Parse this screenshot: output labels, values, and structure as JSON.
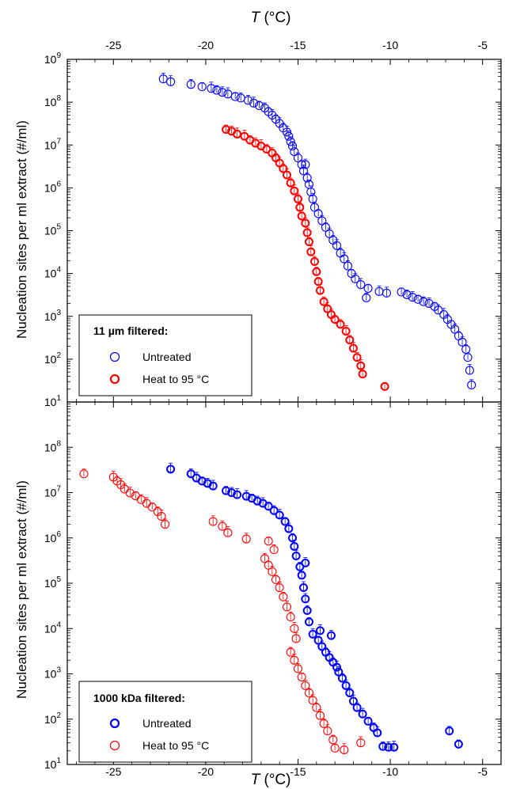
{
  "chart_data": {
    "type": "scatter",
    "top_xaxis": {
      "label_var": "T",
      "label_unit": " (°C)",
      "ticks": [
        -25,
        -20,
        -15,
        -10,
        -5
      ]
    },
    "bottom_xaxis": {
      "label_var": "T",
      "label_unit": " (°C)",
      "ticks": [
        -25,
        -20,
        -15,
        -10,
        -5
      ]
    },
    "xlim": [
      -27.5,
      -4
    ],
    "y_scale": "log",
    "panels": [
      {
        "ylabel": "Nucleation sites per ml extract (#/ml)",
        "ylim": [
          10,
          1000000000
        ],
        "y_ticks": [
          {
            "base": "10",
            "exp": "1"
          },
          {
            "base": "10",
            "exp": "2"
          },
          {
            "base": "10",
            "exp": "3"
          },
          {
            "base": "10",
            "exp": "4"
          },
          {
            "base": "10",
            "exp": "5"
          },
          {
            "base": "10",
            "exp": "6"
          },
          {
            "base": "10",
            "exp": "7"
          },
          {
            "base": "10",
            "exp": "8"
          },
          {
            "base": "10",
            "exp": "9"
          }
        ],
        "legend": {
          "title": "11 µm filtered:",
          "position": "bottom-left"
        },
        "series": [
          {
            "name": "Untreated",
            "color": "#0000ff",
            "marker": "circle",
            "points": [
              [
                -22.3,
                350000000.0
              ],
              [
                -21.9,
                300000000.0
              ],
              [
                -20.8,
                260000000.0
              ],
              [
                -20.2,
                230000000.0
              ],
              [
                -19.7,
                210000000.0
              ],
              [
                -19.4,
                190000000.0
              ],
              [
                -19.1,
                170000000.0
              ],
              [
                -18.8,
                155000000.0
              ],
              [
                -18.4,
                135000000.0
              ],
              [
                -18.1,
                125000000.0
              ],
              [
                -17.7,
                110000000.0
              ],
              [
                -17.4,
                95000000.0
              ],
              [
                -17.1,
                83000000.0
              ],
              [
                -16.8,
                73000000.0
              ],
              [
                -16.6,
                60000000.0
              ],
              [
                -16.4,
                50000000.0
              ],
              [
                -16.2,
                40000000.0
              ],
              [
                -16.0,
                32000000.0
              ],
              [
                -15.8,
                25000000.0
              ],
              [
                -15.6,
                20000000.0
              ],
              [
                -15.5,
                16000000.0
              ],
              [
                -15.4,
                12000000.0
              ],
              [
                -15.3,
                9500000.0
              ],
              [
                -15.2,
                7000000.0
              ],
              [
                -15.0,
                5000000.0
              ],
              [
                -14.8,
                3500000.0
              ],
              [
                -14.6,
                3500000.0
              ],
              [
                -14.7,
                2500000.0
              ],
              [
                -14.5,
                1700000.0
              ],
              [
                -14.4,
                1200000.0
              ],
              [
                -14.3,
                800000.0
              ],
              [
                -14.2,
                550000.0
              ],
              [
                -14.1,
                350000.0
              ],
              [
                -13.9,
                250000.0
              ],
              [
                -13.7,
                170000.0
              ],
              [
                -13.5,
                120000.0
              ],
              [
                -13.3,
                85000.0
              ],
              [
                -13.1,
                60000.0
              ],
              [
                -12.9,
                45000.0
              ],
              [
                -12.7,
                30000.0
              ],
              [
                -12.5,
                22000.0
              ],
              [
                -12.3,
                15000.0
              ],
              [
                -12.1,
                10000.0
              ],
              [
                -11.9,
                7500.0
              ],
              [
                -11.6,
                5500.0
              ],
              [
                -11.2,
                4500.0
              ],
              [
                -11.3,
                2700.0
              ],
              [
                -10.6,
                3800.0
              ],
              [
                -10.2,
                3500.0
              ],
              [
                -9.4,
                3700.0
              ],
              [
                -9.1,
                3200.0
              ],
              [
                -8.8,
                2800.0
              ],
              [
                -8.5,
                2500.0
              ],
              [
                -8.2,
                2200.0
              ],
              [
                -7.9,
                2000.0
              ],
              [
                -7.6,
                1700.0
              ],
              [
                -7.4,
                1400.0
              ],
              [
                -7.1,
                1100.0
              ],
              [
                -6.9,
                850.0
              ],
              [
                -6.7,
                650.0
              ],
              [
                -6.5,
                500.0
              ],
              [
                -6.3,
                350.0
              ],
              [
                -6.1,
                250.0
              ],
              [
                -5.9,
                170.0
              ],
              [
                -5.8,
                110.0
              ],
              [
                -5.7,
                55.0
              ],
              [
                -5.6,
                25.0
              ]
            ]
          },
          {
            "name": "Heat to 95 °C",
            "color": "#ff0000",
            "marker": "circle-bold",
            "points": [
              [
                -18.9,
                23000000.0
              ],
              [
                -18.6,
                21000000.0
              ],
              [
                -18.3,
                18000000.0
              ],
              [
                -17.9,
                16000000.0
              ],
              [
                -17.6,
                13000000.0
              ],
              [
                -17.3,
                11000000.0
              ],
              [
                -17.0,
                9500000.0
              ],
              [
                -16.7,
                8000000.0
              ],
              [
                -16.4,
                6500000.0
              ],
              [
                -16.2,
                5000000.0
              ],
              [
                -16.0,
                3800000.0
              ],
              [
                -15.8,
                2800000.0
              ],
              [
                -15.6,
                2000000.0
              ],
              [
                -15.4,
                1300000.0
              ],
              [
                -15.2,
                850000.0
              ],
              [
                -15.0,
                550000.0
              ],
              [
                -14.9,
                350000.0
              ],
              [
                -14.8,
                220000.0
              ],
              [
                -14.6,
                150000.0
              ],
              [
                -14.5,
                90000.0
              ],
              [
                -14.4,
                55000.0
              ],
              [
                -14.3,
                32000.0
              ],
              [
                -14.1,
                19000.0
              ],
              [
                -14.0,
                11000.0
              ],
              [
                -13.9,
                6500.0
              ],
              [
                -13.8,
                4000.0
              ],
              [
                -13.6,
                2200.0
              ],
              [
                -13.4,
                1500.0
              ],
              [
                -13.2,
                1100.0
              ],
              [
                -13.0,
                850.0
              ],
              [
                -12.7,
                650.0
              ],
              [
                -12.4,
                450.0
              ],
              [
                -12.2,
                280.0
              ],
              [
                -12.0,
                180.0
              ],
              [
                -11.8,
                110.0
              ],
              [
                -11.6,
                70.0
              ],
              [
                -11.5,
                45.0
              ],
              [
                -10.3,
                23.0
              ]
            ]
          }
        ]
      },
      {
        "ylabel": "Nucleation sites per ml extract (#/ml)",
        "ylim": [
          10,
          1000000000
        ],
        "y_ticks": [
          {
            "base": "10",
            "exp": "1"
          },
          {
            "base": "10",
            "exp": "2"
          },
          {
            "base": "10",
            "exp": "3"
          },
          {
            "base": "10",
            "exp": "4"
          },
          {
            "base": "10",
            "exp": "5"
          },
          {
            "base": "10",
            "exp": "6"
          },
          {
            "base": "10",
            "exp": "7"
          },
          {
            "base": "10",
            "exp": "8"
          }
        ],
        "legend": {
          "title": "1000 kDa filtered:",
          "position": "bottom-left"
        },
        "series": [
          {
            "name": "Untreated",
            "color": "#0000ff",
            "marker": "circle-bold",
            "points": [
              [
                -21.9,
                33000000.0
              ],
              [
                -20.8,
                26000000.0
              ],
              [
                -20.5,
                21000000.0
              ],
              [
                -20.2,
                18000000.0
              ],
              [
                -19.9,
                16000000.0
              ],
              [
                -19.6,
                14000000.0
              ],
              [
                -18.9,
                11000000.0
              ],
              [
                -18.6,
                10000000.0
              ],
              [
                -18.3,
                9000000.0
              ],
              [
                -17.8,
                8300000.0
              ],
              [
                -17.5,
                7500000.0
              ],
              [
                -17.2,
                6500000.0
              ],
              [
                -16.9,
                5800000.0
              ],
              [
                -16.6,
                5000000.0
              ],
              [
                -16.3,
                4000000.0
              ],
              [
                -16.0,
                3200000.0
              ],
              [
                -15.7,
                2300000.0
              ],
              [
                -15.5,
                1600000.0
              ],
              [
                -15.3,
                1000000.0
              ],
              [
                -15.2,
                650000.0
              ],
              [
                -15.1,
                400000.0
              ],
              [
                -14.6,
                280000.0
              ],
              [
                -14.9,
                230000.0
              ],
              [
                -14.8,
                150000.0
              ],
              [
                -14.7,
                80000.0
              ],
              [
                -14.6,
                45000.0
              ],
              [
                -14.5,
                25000.0
              ],
              [
                -14.4,
                14000.0
              ],
              [
                -14.2,
                7500.0
              ],
              [
                -13.9,
                5500.0
              ],
              [
                -13.8,
                9000.0
              ],
              [
                -13.2,
                7000.0
              ],
              [
                -13.7,
                4000.0
              ],
              [
                -13.5,
                3000.0
              ],
              [
                -13.3,
                2300.0
              ],
              [
                -13.1,
                1800.0
              ],
              [
                -12.9,
                1400.0
              ],
              [
                -12.8,
                1100.0
              ],
              [
                -12.6,
                800.0
              ],
              [
                -12.4,
                550.0
              ],
              [
                -12.2,
                380.0
              ],
              [
                -12.0,
                250.0
              ],
              [
                -11.8,
                180.0
              ],
              [
                -11.5,
                130.0
              ],
              [
                -11.2,
                90.0
              ],
              [
                -10.9,
                65.0
              ],
              [
                -10.7,
                50.0
              ],
              [
                -10.4,
                25.0
              ],
              [
                -10.1,
                24.0
              ],
              [
                -9.8,
                24.0
              ],
              [
                -6.8,
                55.0
              ],
              [
                -6.3,
                28.0
              ]
            ]
          },
          {
            "name": "Heat to 95 °C",
            "color": "#ff0000",
            "marker": "circle",
            "points": [
              [
                -26.6,
                26000000.0
              ],
              [
                -25.0,
                22000000.0
              ],
              [
                -24.8,
                18000000.0
              ],
              [
                -24.6,
                15000000.0
              ],
              [
                -24.4,
                12000000.0
              ],
              [
                -24.1,
                9800000.0
              ],
              [
                -23.8,
                8500000.0
              ],
              [
                -23.5,
                7000000.0
              ],
              [
                -23.2,
                5800000.0
              ],
              [
                -22.9,
                4800000.0
              ],
              [
                -22.6,
                3800000.0
              ],
              [
                -22.4,
                3000000.0
              ],
              [
                -22.2,
                2000000.0
              ],
              [
                -19.6,
                2300000.0
              ],
              [
                -19.1,
                1800000.0
              ],
              [
                -18.8,
                1300000.0
              ],
              [
                -17.8,
                950000.0
              ],
              [
                -16.6,
                850000.0
              ],
              [
                -16.3,
                550000.0
              ],
              [
                -16.8,
                350000.0
              ],
              [
                -16.6,
                250000.0
              ],
              [
                -16.4,
                180000.0
              ],
              [
                -16.2,
                120000.0
              ],
              [
                -16.0,
                80000.0
              ],
              [
                -15.8,
                50000.0
              ],
              [
                -15.6,
                30000.0
              ],
              [
                -15.4,
                18000.0
              ],
              [
                -15.2,
                10000.0
              ],
              [
                -15.1,
                6000.0
              ],
              [
                -15.4,
                3000.0
              ],
              [
                -15.2,
                2000.0
              ],
              [
                -15.0,
                1300.0
              ],
              [
                -14.8,
                850.0
              ],
              [
                -14.6,
                550.0
              ],
              [
                -14.4,
                380.0
              ],
              [
                -14.2,
                260.0
              ],
              [
                -14.0,
                180.0
              ],
              [
                -13.8,
                120.0
              ],
              [
                -13.6,
                80.0
              ],
              [
                -13.4,
                55.0
              ],
              [
                -13.1,
                35.0
              ],
              [
                -13.0,
                23.0
              ],
              [
                -12.5,
                21.0
              ],
              [
                -11.6,
                30.0
              ]
            ]
          }
        ]
      }
    ]
  }
}
